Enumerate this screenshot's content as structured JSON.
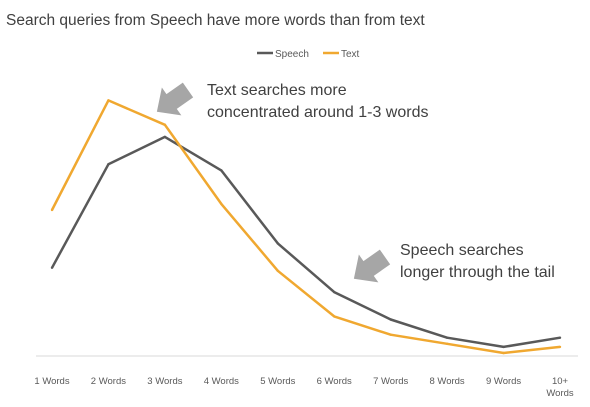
{
  "chart_data": {
    "type": "line",
    "title": "Search queries from Speech have more words than from text",
    "categories": [
      "1 Words",
      "2 Words",
      "3 Words",
      "4 Words",
      "5 Words",
      "6 Words",
      "7 Words",
      "8 Words",
      "9 Words",
      "10+ Words"
    ],
    "series": [
      {
        "name": "Speech",
        "color": "#595959",
        "values": [
          13.5,
          30.5,
          35,
          29.5,
          17.5,
          9.5,
          5,
          2,
          0.5,
          2
        ]
      },
      {
        "name": "Text",
        "color": "#f0a830",
        "values": [
          23,
          41,
          37,
          24,
          13,
          5.5,
          2.5,
          1,
          -0.5,
          0.5
        ]
      }
    ],
    "ylim": [
      -1,
      46
    ],
    "grid": false,
    "legend_position": "top-center",
    "annotations": [
      {
        "text_lines": [
          "Text searches more",
          "concentrated around 1-3 words"
        ]
      },
      {
        "text_lines": [
          "Speech searches",
          "longer through the tail"
        ]
      }
    ]
  }
}
